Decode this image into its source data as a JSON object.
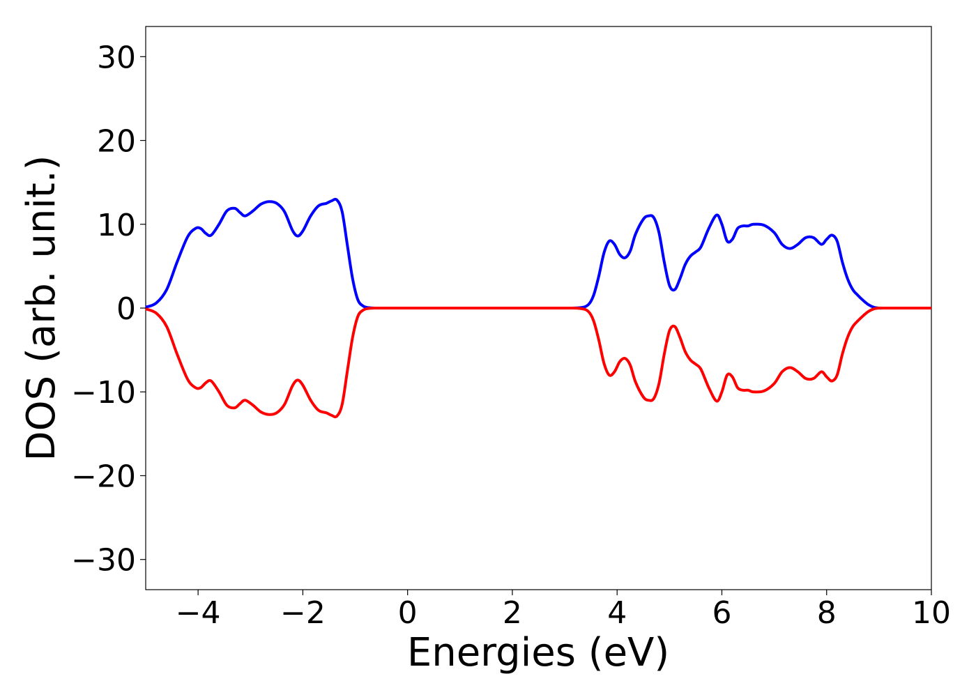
{
  "chart_data": {
    "type": "line",
    "xlabel": "Energies (eV)",
    "ylabel": "DOS (arb. unit.)",
    "xlim": [
      -5,
      10
    ],
    "ylim": [
      -33.6,
      33.6
    ],
    "xticks": [
      -4,
      -2,
      0,
      2,
      4,
      6,
      8,
      10
    ],
    "xtick_labels": [
      "−4",
      "−2",
      "0",
      "2",
      "4",
      "6",
      "8",
      "10"
    ],
    "yticks": [
      -30,
      -20,
      -10,
      0,
      10,
      20,
      30
    ],
    "ytick_labels": [
      "−30",
      "−20",
      "−10",
      "0",
      "10",
      "20",
      "30"
    ],
    "grid": false,
    "series": [
      {
        "color": "#0000ff",
        "x": [
          -5.0,
          -4.8,
          -4.6,
          -4.4,
          -4.2,
          -4.05,
          -3.95,
          -3.85,
          -3.75,
          -3.6,
          -3.45,
          -3.3,
          -3.2,
          -3.1,
          -2.95,
          -2.8,
          -2.65,
          -2.5,
          -2.35,
          -2.2,
          -2.1,
          -2.0,
          -1.85,
          -1.7,
          -1.55,
          -1.45,
          -1.35,
          -1.25,
          -1.15,
          -1.05,
          -0.95,
          -0.85,
          -0.75,
          -0.6,
          -0.4,
          0.0,
          1.0,
          2.0,
          3.0,
          3.3,
          3.45,
          3.55,
          3.65,
          3.75,
          3.85,
          3.95,
          4.05,
          4.15,
          4.25,
          4.35,
          4.5,
          4.6,
          4.7,
          4.8,
          4.9,
          5.0,
          5.1,
          5.2,
          5.3,
          5.4,
          5.5,
          5.6,
          5.75,
          5.9,
          6.0,
          6.1,
          6.2,
          6.3,
          6.4,
          6.5,
          6.6,
          6.8,
          7.0,
          7.15,
          7.3,
          7.45,
          7.6,
          7.75,
          7.9,
          8.0,
          8.1,
          8.2,
          8.3,
          8.4,
          8.5,
          8.6,
          8.7,
          8.8,
          8.9,
          9.0,
          9.1,
          9.2,
          9.4,
          10.0
        ],
        "values": [
          0.1,
          0.6,
          2.2,
          5.5,
          8.5,
          9.5,
          9.5,
          8.9,
          8.7,
          10.0,
          11.6,
          11.9,
          11.4,
          11.0,
          11.6,
          12.4,
          12.7,
          12.5,
          11.5,
          9.3,
          8.6,
          9.2,
          11.0,
          12.2,
          12.5,
          12.8,
          12.9,
          11.5,
          7.5,
          3.5,
          1.0,
          0.25,
          0.05,
          0.0,
          0.0,
          0.0,
          0.0,
          0.0,
          0.0,
          0.05,
          0.4,
          1.5,
          3.8,
          6.6,
          8.0,
          7.6,
          6.4,
          6.0,
          6.8,
          8.8,
          10.6,
          11.0,
          10.8,
          9.0,
          5.5,
          2.7,
          2.2,
          3.5,
          5.2,
          6.2,
          6.7,
          7.3,
          9.5,
          11.1,
          10.0,
          8.0,
          8.2,
          9.5,
          9.8,
          9.8,
          10.0,
          9.9,
          9.0,
          7.6,
          7.1,
          7.6,
          8.4,
          8.4,
          7.6,
          8.2,
          8.7,
          8.0,
          5.5,
          3.5,
          2.2,
          1.5,
          0.9,
          0.4,
          0.1,
          0.0,
          0.0,
          0.0,
          0.0,
          0.0
        ]
      },
      {
        "color": "#ff0000",
        "x": [
          -5.0,
          -4.8,
          -4.6,
          -4.4,
          -4.2,
          -4.05,
          -3.95,
          -3.85,
          -3.75,
          -3.6,
          -3.45,
          -3.3,
          -3.2,
          -3.1,
          -2.95,
          -2.8,
          -2.65,
          -2.5,
          -2.35,
          -2.2,
          -2.1,
          -2.0,
          -1.85,
          -1.7,
          -1.55,
          -1.45,
          -1.35,
          -1.25,
          -1.15,
          -1.05,
          -0.95,
          -0.85,
          -0.75,
          -0.6,
          -0.4,
          0.0,
          1.0,
          2.0,
          3.0,
          3.3,
          3.45,
          3.55,
          3.65,
          3.75,
          3.85,
          3.95,
          4.05,
          4.15,
          4.25,
          4.35,
          4.5,
          4.6,
          4.7,
          4.8,
          4.9,
          5.0,
          5.1,
          5.2,
          5.3,
          5.4,
          5.5,
          5.6,
          5.75,
          5.9,
          6.0,
          6.1,
          6.2,
          6.3,
          6.4,
          6.5,
          6.6,
          6.8,
          7.0,
          7.15,
          7.3,
          7.45,
          7.6,
          7.75,
          7.9,
          8.0,
          8.1,
          8.2,
          8.3,
          8.4,
          8.5,
          8.6,
          8.7,
          8.8,
          8.9,
          9.0,
          9.1,
          9.2,
          9.4,
          10.0
        ],
        "values": [
          -0.1,
          -0.6,
          -2.2,
          -5.5,
          -8.5,
          -9.5,
          -9.5,
          -8.9,
          -8.7,
          -10.0,
          -11.6,
          -11.9,
          -11.4,
          -11.0,
          -11.6,
          -12.4,
          -12.7,
          -12.5,
          -11.5,
          -9.3,
          -8.6,
          -9.2,
          -11.0,
          -12.2,
          -12.5,
          -12.8,
          -12.9,
          -11.5,
          -7.5,
          -3.5,
          -1.0,
          -0.25,
          -0.05,
          0.0,
          0.0,
          0.0,
          0.0,
          0.0,
          0.0,
          -0.05,
          -0.4,
          -1.5,
          -3.8,
          -6.6,
          -8.0,
          -7.6,
          -6.4,
          -6.0,
          -6.8,
          -8.8,
          -10.6,
          -11.0,
          -10.8,
          -9.0,
          -5.5,
          -2.7,
          -2.2,
          -3.5,
          -5.2,
          -6.2,
          -6.7,
          -7.3,
          -9.5,
          -11.1,
          -10.0,
          -8.0,
          -8.2,
          -9.5,
          -9.8,
          -9.8,
          -10.0,
          -9.9,
          -9.0,
          -7.6,
          -7.1,
          -7.6,
          -8.4,
          -8.4,
          -7.6,
          -8.2,
          -8.7,
          -8.0,
          -5.5,
          -3.5,
          -2.2,
          -1.5,
          -0.9,
          -0.4,
          -0.1,
          0.0,
          0.0,
          0.0,
          0.0,
          0.0
        ]
      }
    ]
  }
}
